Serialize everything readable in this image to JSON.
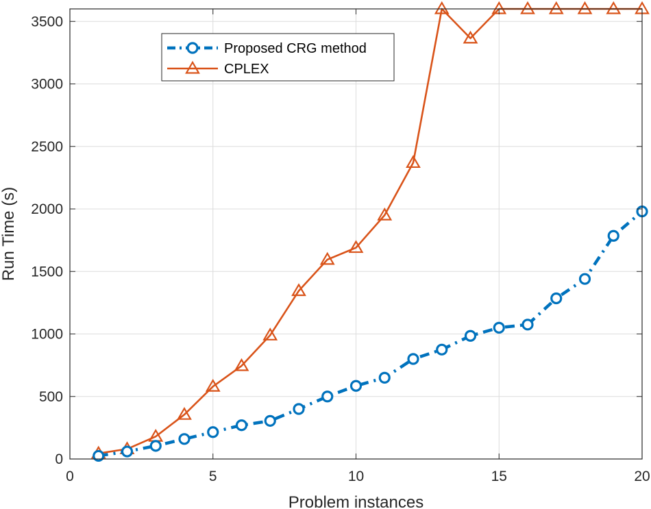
{
  "chart_data": {
    "type": "line",
    "xlabel": "Problem instances",
    "ylabel": "Run Time (s)",
    "xlim": [
      0,
      20
    ],
    "ylim": [
      0,
      3600
    ],
    "xticks": [
      0,
      5,
      10,
      15,
      20
    ],
    "yticks": [
      0,
      500,
      1000,
      1500,
      2000,
      2500,
      3000,
      3500
    ],
    "grid": true,
    "legend_position": "top-left",
    "x": [
      1,
      2,
      3,
      4,
      5,
      6,
      7,
      8,
      9,
      10,
      11,
      12,
      13,
      14,
      15,
      16,
      17,
      18,
      19,
      20
    ],
    "series": [
      {
        "name": "Proposed CRG method",
        "color": "#0072BD",
        "marker": "circle",
        "line_style": "dash-dot",
        "values": [
          25,
          60,
          105,
          160,
          215,
          270,
          305,
          400,
          500,
          585,
          650,
          800,
          875,
          985,
          1050,
          1075,
          1285,
          1440,
          1785,
          1980
        ]
      },
      {
        "name": "CPLEX",
        "color": "#D95319",
        "marker": "triangle",
        "line_style": "solid",
        "values": [
          45,
          80,
          180,
          355,
          580,
          745,
          990,
          1345,
          1595,
          1690,
          1950,
          2370,
          3600,
          3365,
          3600,
          3600,
          3600,
          3600,
          3600,
          3600
        ]
      }
    ]
  }
}
